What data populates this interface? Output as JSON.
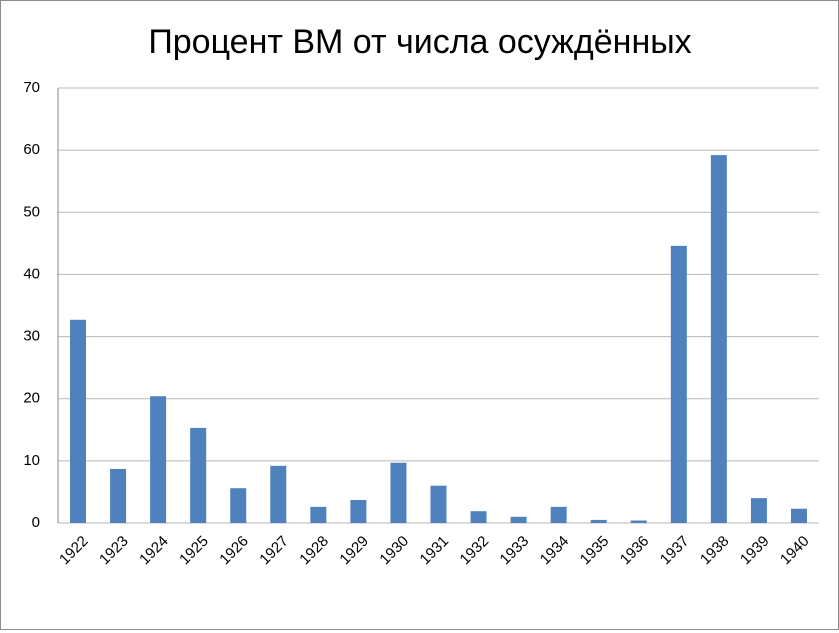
{
  "chart_data": {
    "type": "bar",
    "title": "Процент ВМ от числа осуждённых",
    "categories": [
      "1922",
      "1923",
      "1924",
      "1925",
      "1926",
      "1927",
      "1928",
      "1929",
      "1930",
      "1931",
      "1932",
      "1933",
      "1934",
      "1935",
      "1936",
      "1937",
      "1938",
      "1939",
      "1940"
    ],
    "values": [
      32.7,
      8.7,
      20.4,
      15.3,
      5.6,
      9.2,
      2.6,
      3.7,
      9.7,
      6.0,
      1.9,
      1.0,
      2.6,
      0.5,
      0.4,
      44.6,
      59.2,
      4.0,
      2.3
    ],
    "color": "#4f81bd",
    "ylim": [
      0,
      70
    ],
    "yticks": [
      0,
      10,
      20,
      30,
      40,
      50,
      60,
      70
    ],
    "grid": true
  }
}
